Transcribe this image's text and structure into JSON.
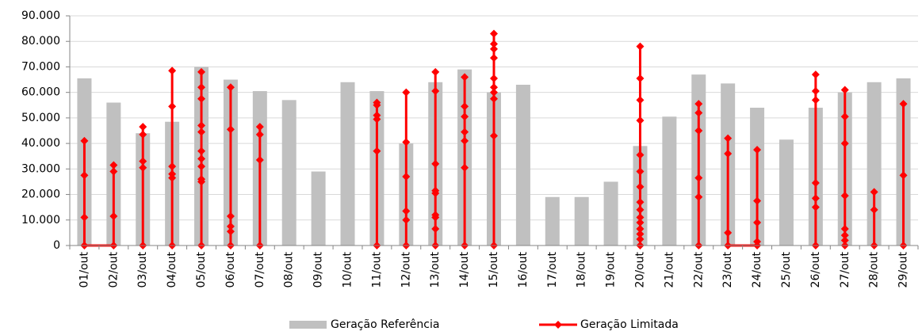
{
  "chart_data": {
    "type": "bar",
    "categories": [
      "01/out",
      "02/out",
      "03/out",
      "04/out",
      "05/out",
      "06/out",
      "07/out",
      "08/out",
      "09/out",
      "10/out",
      "11/out",
      "12/out",
      "13/out",
      "14/out",
      "15/out",
      "16/out",
      "17/out",
      "18/out",
      "19/out",
      "20/out",
      "21/out",
      "22/out",
      "23/out",
      "24/out",
      "25/out",
      "26/out",
      "27/out",
      "28/out",
      "29/out"
    ],
    "series": [
      {
        "name": "Geração Referência",
        "type": "bar",
        "color": "#c0c0c0",
        "values": [
          65500,
          56000,
          44000,
          48500,
          70000,
          65000,
          60500,
          57000,
          29000,
          64000,
          60500,
          40000,
          64000,
          69000,
          60000,
          63000,
          19000,
          19000,
          25000,
          39000,
          50500,
          67000,
          63500,
          54000,
          41500,
          54000,
          60000,
          64000,
          65500
        ]
      },
      {
        "name": "Geração Limitada",
        "type": "line",
        "color": "#ff0000",
        "x": [
          "01/out",
          "01/out",
          "01/out",
          "01/out",
          "02/out",
          "02/out",
          "02/out",
          "02/out",
          null,
          "03/out",
          "03/out",
          "03/out",
          "03/out",
          "03/out",
          null,
          "04/out",
          "04/out",
          "04/out",
          "04/out",
          "04/out",
          "04/out",
          null,
          "05/out",
          "05/out",
          "05/out",
          "05/out",
          "05/out",
          "05/out",
          "05/out",
          "05/out",
          "05/out",
          "05/out",
          "05/out",
          null,
          "06/out",
          "06/out",
          "06/out",
          "06/out",
          "06/out",
          "06/out",
          null,
          "07/out",
          "07/out",
          "07/out",
          "07/out",
          null,
          "11/out",
          "11/out",
          "11/out",
          "11/out",
          "11/out",
          "11/out",
          null,
          "12/out",
          "12/out",
          "12/out",
          "12/out",
          "12/out",
          "12/out",
          null,
          "13/out",
          "13/out",
          "13/out",
          "13/out",
          "13/out",
          "13/out",
          "13/out",
          "13/out",
          "13/out",
          null,
          "14/out",
          "14/out",
          "14/out",
          "14/out",
          "14/out",
          "14/out",
          "14/out",
          null,
          "15/out",
          "15/out",
          "15/out",
          "15/out",
          "15/out",
          "15/out",
          "15/out",
          "15/out",
          "15/out",
          "15/out",
          null,
          "20/out",
          "20/out",
          "20/out",
          "20/out",
          "20/out",
          "20/out",
          "20/out",
          "20/out",
          "20/out",
          "20/out",
          "20/out",
          "20/out",
          "20/out",
          "20/out",
          "20/out",
          null,
          "22/out",
          "22/out",
          "22/out",
          "22/out",
          "22/out",
          "22/out",
          null,
          "23/out",
          "23/out",
          "23/out",
          "23/out",
          "24/out",
          "24/out",
          "24/out",
          "24/out",
          "24/out",
          null,
          "26/out",
          "26/out",
          "26/out",
          "26/out",
          "26/out",
          "26/out",
          "26/out",
          null,
          "27/out",
          "27/out",
          "27/out",
          "27/out",
          "27/out",
          "27/out",
          "27/out",
          "27/out",
          null,
          "28/out",
          "28/out",
          "28/out",
          null,
          "29/out",
          "29/out",
          "29/out"
        ],
        "values": [
          41000,
          27500,
          11000,
          0,
          0,
          11500,
          29000,
          31500,
          null,
          0,
          30500,
          33000,
          43500,
          46500,
          null,
          0,
          26500,
          28000,
          31000,
          54500,
          68500,
          null,
          0,
          25000,
          26000,
          31000,
          34000,
          37000,
          44500,
          47000,
          57500,
          62000,
          68000,
          null,
          0,
          5500,
          7500,
          11500,
          45500,
          62000,
          null,
          0,
          33500,
          43500,
          46500,
          null,
          0,
          37000,
          49500,
          51000,
          55000,
          56000,
          null,
          0,
          10000,
          13500,
          27000,
          40500,
          60000,
          null,
          0,
          6500,
          11000,
          12000,
          20500,
          21500,
          32000,
          60500,
          68000,
          null,
          0,
          30500,
          41000,
          44500,
          50500,
          54500,
          66000,
          null,
          0,
          43000,
          57500,
          60000,
          62000,
          65500,
          73500,
          77000,
          79000,
          83000,
          null,
          0,
          2500,
          4500,
          6500,
          9000,
          11000,
          14000,
          17000,
          23000,
          29000,
          35500,
          49000,
          57000,
          65500,
          78000,
          null,
          0,
          19000,
          26500,
          45000,
          52000,
          55500,
          null,
          42000,
          36000,
          5000,
          0,
          0,
          1500,
          9000,
          17500,
          37500,
          null,
          0,
          15000,
          18500,
          24500,
          57000,
          60500,
          67000,
          null,
          0,
          2000,
          4000,
          6500,
          19500,
          40000,
          50500,
          61000,
          null,
          0,
          14000,
          21000,
          null,
          0,
          27500,
          55500
        ]
      }
    ],
    "ylim": [
      0,
      90000
    ],
    "yticks": [
      0,
      {
        "value": 10000,
        "label": "10.000"
      },
      {
        "value": 20000,
        "label": "20.000"
      },
      {
        "value": 30000,
        "label": "30.000"
      },
      {
        "value": 40000,
        "label": "40.000"
      },
      {
        "value": 50000,
        "label": "50.000"
      },
      {
        "value": 60000,
        "label": "60.000"
      },
      {
        "value": 70000,
        "label": "70.000"
      },
      {
        "value": 80000,
        "label": "80.000"
      },
      {
        "value": 90000,
        "label": "90.000"
      }
    ],
    "grid": true,
    "legend": "bottom"
  }
}
